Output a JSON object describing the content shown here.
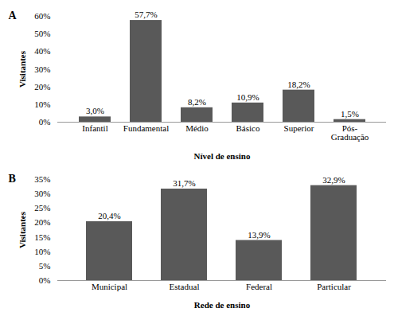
{
  "chart_data": [
    {
      "type": "bar",
      "title": "A",
      "x_label": "Nível de ensino",
      "y_label": "Visitantes",
      "categories": [
        "Infantil",
        "Fundamental",
        "Médio",
        "Básico",
        "Superior",
        "Pós-Graduação"
      ],
      "values": [
        3.0,
        57.7,
        8.2,
        10.9,
        18.2,
        1.5
      ],
      "value_labels": [
        "3,0%",
        "57,7%",
        "8,2%",
        "10,9%",
        "18,2%",
        "1,5%"
      ],
      "color": "#595959",
      "data_labels": true,
      "grid": false,
      "ylim": [
        0,
        60
      ],
      "yticks": [
        {
          "value": 0,
          "label": "0%"
        },
        {
          "value": 10,
          "label": "10%"
        },
        {
          "value": 20,
          "label": "20%"
        },
        {
          "value": 30,
          "label": "30%"
        },
        {
          "value": 40,
          "label": "40%"
        },
        {
          "value": 50,
          "label": "50%"
        },
        {
          "value": 60,
          "label": "60%"
        }
      ]
    },
    {
      "type": "bar",
      "title": "B",
      "x_label": "Rede de ensino",
      "y_label": "Visitantes",
      "categories": [
        "Municipal",
        "Estadual",
        "Federal",
        "Particular"
      ],
      "values": [
        20.4,
        31.7,
        13.9,
        32.9
      ],
      "value_labels": [
        "20,4%",
        "31,7%",
        "13,9%",
        "32,9%"
      ],
      "color": "#595959",
      "data_labels": true,
      "grid": false,
      "ylim": [
        0,
        35
      ],
      "yticks": [
        {
          "value": 0,
          "label": "0%"
        },
        {
          "value": 5,
          "label": "5%"
        },
        {
          "value": 10,
          "label": "10%"
        },
        {
          "value": 15,
          "label": "15%"
        },
        {
          "value": 20,
          "label": "20%"
        },
        {
          "value": 25,
          "label": "25%"
        },
        {
          "value": 30,
          "label": "30%"
        },
        {
          "value": 35,
          "label": "35%"
        }
      ]
    }
  ]
}
